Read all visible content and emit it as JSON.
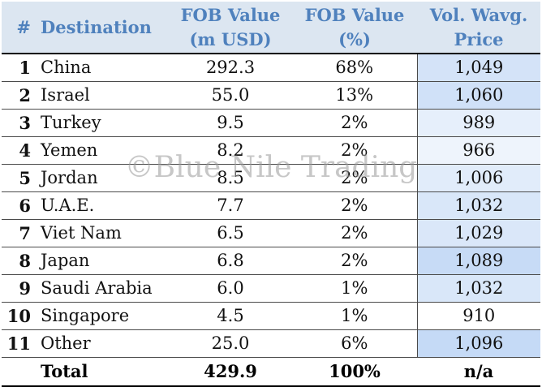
{
  "headers": {
    "num": "#",
    "destination": "Destination",
    "fob_value_line1": "FOB Value",
    "fob_value_line2": "(m USD)",
    "fob_pct_line1": "FOB Value",
    "fob_pct_line2": "(%)",
    "price_line1": "Vol. Wavg.",
    "price_line2": "Price"
  },
  "rows": [
    {
      "rank": "1",
      "destination": "China",
      "fob_value": "292.3",
      "fob_pct": "68%",
      "price": "1,049"
    },
    {
      "rank": "2",
      "destination": "Israel",
      "fob_value": "55.0",
      "fob_pct": "13%",
      "price": "1,060"
    },
    {
      "rank": "3",
      "destination": "Turkey",
      "fob_value": "9.5",
      "fob_pct": "2%",
      "price": "989"
    },
    {
      "rank": "4",
      "destination": "Yemen",
      "fob_value": "8.2",
      "fob_pct": "2%",
      "price": "966"
    },
    {
      "rank": "5",
      "destination": "Jordan",
      "fob_value": "8.5",
      "fob_pct": "2%",
      "price": "1,006"
    },
    {
      "rank": "6",
      "destination": "U.A.E.",
      "fob_value": "7.7",
      "fob_pct": "2%",
      "price": "1,032"
    },
    {
      "rank": "7",
      "destination": "Viet Nam",
      "fob_value": "6.5",
      "fob_pct": "2%",
      "price": "1,029"
    },
    {
      "rank": "8",
      "destination": "Japan",
      "fob_value": "6.8",
      "fob_pct": "2%",
      "price": "1,089"
    },
    {
      "rank": "9",
      "destination": "Saudi Arabia",
      "fob_value": "6.0",
      "fob_pct": "1%",
      "price": "1,032"
    },
    {
      "rank": "10",
      "destination": "Singapore",
      "fob_value": "4.5",
      "fob_pct": "1%",
      "price": "910"
    },
    {
      "rank": "11",
      "destination": "Other",
      "fob_value": "25.0",
      "fob_pct": "6%",
      "price": "1,096"
    }
  ],
  "total": {
    "label": "Total",
    "fob_value": "429.9",
    "fob_pct": "100%",
    "price": "n/a"
  },
  "watermark": "©Blue Nile Trading",
  "colors": {
    "header_bg": "#dce6f1",
    "header_text": "#4f81bd",
    "price_scale_low": "#ffffff",
    "price_scale_high": "#c5daf6"
  }
}
